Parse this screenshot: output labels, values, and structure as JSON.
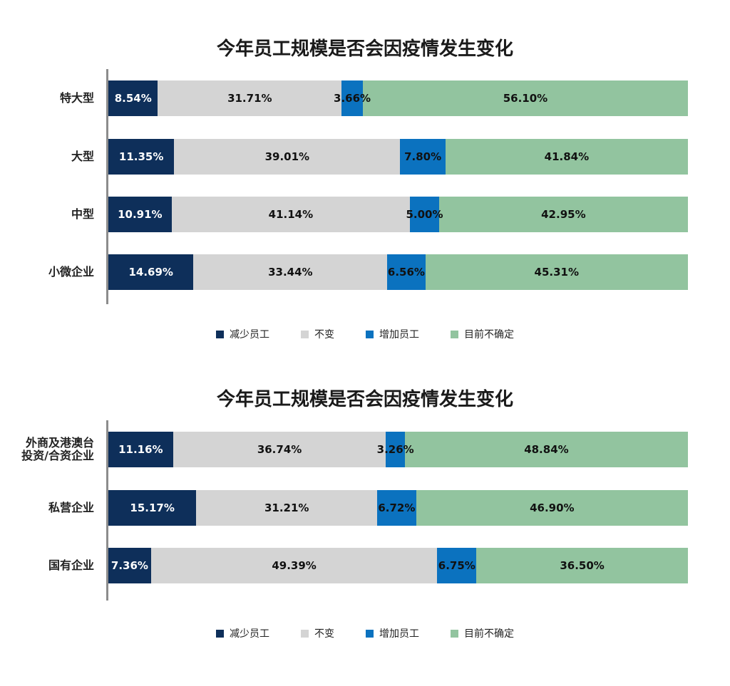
{
  "chart_data": [
    {
      "type": "bar",
      "orientation": "horizontal",
      "stacked": "percent",
      "title": "今年员工规模是否会因疫情发生变化",
      "categories": [
        "特大型",
        "大型",
        "中型",
        "小微企业"
      ],
      "series": [
        {
          "name": "减少员工",
          "color": "#0e2f5a",
          "label_color": "#ffffff",
          "values": [
            8.54,
            11.35,
            10.91,
            14.69
          ],
          "labels": [
            "8.54%",
            "11.35%",
            "10.91%",
            "14.69%"
          ]
        },
        {
          "name": "不变",
          "color": "#d4d4d4",
          "label_color": "#111111",
          "values": [
            31.71,
            39.01,
            41.14,
            33.44
          ],
          "labels": [
            "31.71%",
            "39.01%",
            "41.14%",
            "33.44%"
          ]
        },
        {
          "name": "增加员工",
          "color": "#0b72bf",
          "label_color": "#111111",
          "values": [
            3.66,
            7.8,
            5.0,
            6.56
          ],
          "labels": [
            "3.66%",
            "7.80%",
            "5.00%",
            "6.56%"
          ]
        },
        {
          "name": "目前不确定",
          "color": "#92c49f",
          "label_color": "#111111",
          "values": [
            56.1,
            41.84,
            42.95,
            45.31
          ],
          "labels": [
            "56.10%",
            "41.84%",
            "42.95%",
            "45.31%"
          ]
        }
      ],
      "legend": "bottom",
      "grid": false
    },
    {
      "type": "bar",
      "orientation": "horizontal",
      "stacked": "percent",
      "title": "今年员工规模是否会因疫情发生变化",
      "categories": [
        [
          "外商及港澳台",
          "投资/合资企业"
        ],
        [
          "私营企业"
        ],
        [
          "国有企业"
        ]
      ],
      "series": [
        {
          "name": "减少员工",
          "color": "#0e2f5a",
          "label_color": "#ffffff",
          "values": [
            11.16,
            15.17,
            7.36
          ],
          "labels": [
            "11.16%",
            "15.17%",
            "7.36%"
          ]
        },
        {
          "name": "不变",
          "color": "#d4d4d4",
          "label_color": "#111111",
          "values": [
            36.74,
            31.21,
            49.39
          ],
          "labels": [
            "36.74%",
            "31.21%",
            "49.39%"
          ]
        },
        {
          "name": "增加员工",
          "color": "#0b72bf",
          "label_color": "#111111",
          "values": [
            3.26,
            6.72,
            6.75
          ],
          "labels": [
            "3.26%",
            "6.72%",
            "6.75%"
          ]
        },
        {
          "name": "目前不确定",
          "color": "#92c49f",
          "label_color": "#111111",
          "values": [
            48.84,
            46.9,
            36.5
          ],
          "labels": [
            "48.84%",
            "46.90%",
            "36.50%"
          ]
        }
      ],
      "legend": "bottom",
      "grid": false
    }
  ]
}
